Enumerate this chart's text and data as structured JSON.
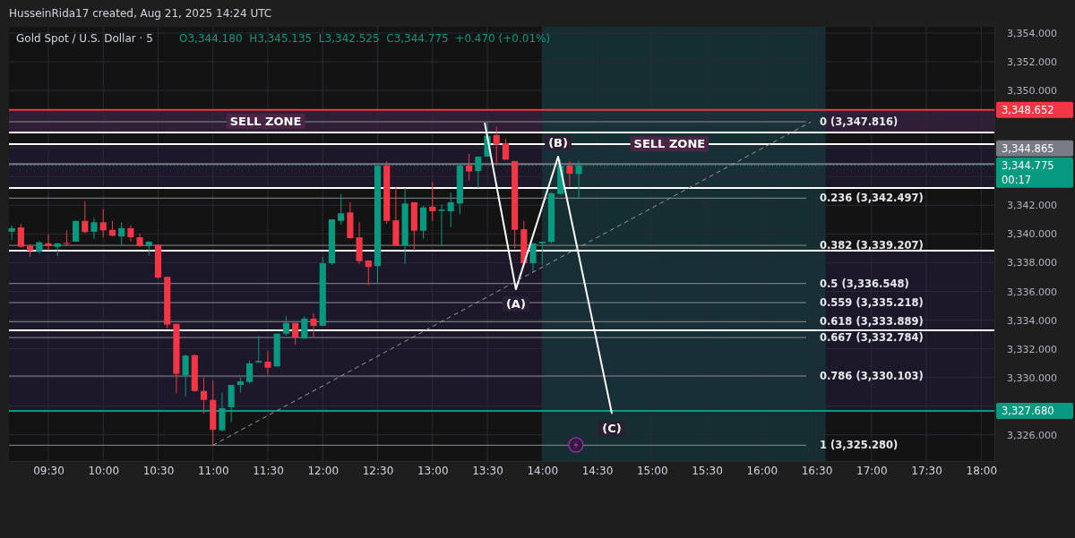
{
  "chart_data": {
    "type": "candlestick",
    "title": "Gold Spot / U.S. Dollar · 5",
    "subtitle": "O3,344.180  H3,345.135  L3,342.525  C3,344.775  +0.470 (+0.01%)",
    "x": [
      9.1667,
      9.25,
      9.3333,
      9.4167,
      9.5,
      9.5833,
      9.6667,
      9.75,
      9.8333,
      9.9167,
      10,
      10.0833,
      10.1667,
      10.25,
      10.3333,
      10.4167,
      10.5,
      10.5833,
      10.6667,
      10.75,
      10.8333,
      10.9167,
      11,
      11.0833,
      11.1667,
      11.25,
      11.3333,
      11.4167,
      11.5,
      11.5833,
      11.6667,
      11.75,
      11.8333,
      11.9167,
      12,
      12.0833,
      12.1667,
      12.25,
      12.3333,
      12.4167,
      12.5,
      12.5833,
      12.6667,
      12.75,
      12.8333,
      12.9167,
      13,
      13.0833,
      13.1667,
      13.25,
      13.3333,
      13.4167,
      13.5,
      13.5833,
      13.6667,
      13.75,
      13.8333,
      13.9167,
      14,
      14.0833,
      14.1667,
      14.25,
      14.3333
    ],
    "ohlc": [
      [
        3340.15,
        3340.61,
        3339.57,
        3340.4
      ],
      [
        3340.46,
        3340.71,
        3339.04,
        3339.11
      ],
      [
        3339.15,
        3339.29,
        3338.42,
        3338.84
      ],
      [
        3338.79,
        3339.5,
        3338.63,
        3339.42
      ],
      [
        3339.35,
        3339.98,
        3338.84,
        3339.15
      ],
      [
        3339.1,
        3339.35,
        3338.46,
        3339.35
      ],
      [
        3339.38,
        3340.25,
        3339.15,
        3339.33
      ],
      [
        3339.46,
        3340.91,
        3339.46,
        3340.91
      ],
      [
        3340.91,
        3342.27,
        3340.04,
        3340.13
      ],
      [
        3340.15,
        3341.13,
        3339.63,
        3340.81
      ],
      [
        3340.81,
        3341.75,
        3339.77,
        3340.25
      ],
      [
        3340.29,
        3340.91,
        3339.84,
        3339.88
      ],
      [
        3339.83,
        3340.81,
        3339.21,
        3340.4
      ],
      [
        3340.4,
        3340.6,
        3339.5,
        3339.77
      ],
      [
        3339.77,
        3340.04,
        3339.11,
        3339.15
      ],
      [
        3339.15,
        3339.5,
        3338.53,
        3339.46
      ],
      [
        3339.25,
        3339.25,
        3336.86,
        3336.96
      ],
      [
        3337.01,
        3337.01,
        3333.43,
        3333.68
      ],
      [
        3333.74,
        3333.74,
        3328.9,
        3330.25
      ],
      [
        3330.15,
        3331.6,
        3328.69,
        3331.52
      ],
      [
        3331.56,
        3331.6,
        3329.0,
        3329.06
      ],
      [
        3329.06,
        3330.0,
        3327.5,
        3328.44
      ],
      [
        3328.44,
        3329.8,
        3325.28,
        3326.36
      ],
      [
        3326.32,
        3328.96,
        3326.25,
        3327.86
      ],
      [
        3327.93,
        3329.48,
        3326.88,
        3329.48
      ],
      [
        3329.48,
        3330.0,
        3328.96,
        3329.73
      ],
      [
        3329.69,
        3331.18,
        3329.59,
        3330.98
      ],
      [
        3331.05,
        3332.91,
        3331.05,
        3331.15
      ],
      [
        3331.1,
        3331.87,
        3330.21,
        3330.68
      ],
      [
        3330.77,
        3333.05,
        3330.77,
        3333.05
      ],
      [
        3333.05,
        3334.26,
        3332.91,
        3333.8
      ],
      [
        3333.8,
        3333.8,
        3332.29,
        3332.8
      ],
      [
        3332.71,
        3334.26,
        3332.71,
        3334.1
      ],
      [
        3334.1,
        3334.47,
        3332.8,
        3333.6
      ],
      [
        3333.6,
        3338.42,
        3333.6,
        3337.96
      ],
      [
        3337.96,
        3341.02,
        3337.84,
        3341.02
      ],
      [
        3340.91,
        3342.79,
        3340.67,
        3341.44
      ],
      [
        3341.5,
        3342.21,
        3339.67,
        3339.71
      ],
      [
        3339.77,
        3340.81,
        3337.9,
        3338.11
      ],
      [
        3338.15,
        3338.15,
        3336.45,
        3337.7
      ],
      [
        3337.76,
        3344.76,
        3336.55,
        3344.76
      ],
      [
        3344.76,
        3345.08,
        3340.71,
        3340.91
      ],
      [
        3340.95,
        3343.31,
        3339.15,
        3339.21
      ],
      [
        3339.21,
        3343.2,
        3337.9,
        3342.12
      ],
      [
        3342.21,
        3342.21,
        3338.84,
        3340.23
      ],
      [
        3340.23,
        3341.96,
        3339.67,
        3341.85
      ],
      [
        3341.91,
        3343.62,
        3340.91,
        3341.58
      ],
      [
        3341.6,
        3342.06,
        3339.15,
        3341.7
      ],
      [
        3341.58,
        3342.89,
        3340.46,
        3342.21
      ],
      [
        3342.12,
        3344.91,
        3341.38,
        3344.76
      ],
      [
        3344.76,
        3345.59,
        3343.72,
        3344.35
      ],
      [
        3344.39,
        3345.39,
        3343.2,
        3345.39
      ],
      [
        3345.39,
        3347.816,
        3345.39,
        3346.84
      ],
      [
        3346.9,
        3347.46,
        3344.87,
        3346.22
      ],
      [
        3346.32,
        3346.64,
        3345.18,
        3345.18
      ],
      [
        3345.08,
        3345.08,
        3339.0,
        3340.29
      ],
      [
        3340.33,
        3340.91,
        3337.96,
        3337.96
      ],
      [
        3337.96,
        3339.35,
        3337.34,
        3339.35
      ],
      [
        3339.35,
        3339.46,
        3337.86,
        3339.46
      ],
      [
        3339.46,
        3342.89,
        3339.35,
        3342.83
      ],
      [
        3342.79,
        3345.18,
        3342.75,
        3344.76
      ],
      [
        3344.76,
        3345.08,
        3343.31,
        3344.2
      ],
      [
        3344.18,
        3345.135,
        3342.525,
        3344.775
      ]
    ],
    "series": [
      {
        "type": "line",
        "x": [
          13.476,
          13.76,
          14.145,
          14.635
        ],
        "values": [
          3347.75,
          3336.15,
          3345.39,
          3327.48
        ],
        "color": "#ffffff"
      },
      {
        "type": "line",
        "x": [
          11.0,
          16.447
        ],
        "values": [
          3325.28,
          3347.8
        ],
        "color": "#9598a1",
        "line_style": "dashed"
      }
    ],
    "xlim": [
      9.141,
      18.12
    ],
    "ylim": [
      3324.18,
      3354.43
    ],
    "xticks": [
      {
        "value": 9.5,
        "label": "09:30"
      },
      {
        "value": 10,
        "label": "10:00"
      },
      {
        "value": 10.5,
        "label": "10:30"
      },
      {
        "value": 11,
        "label": "11:00"
      },
      {
        "value": 11.5,
        "label": "11:30"
      },
      {
        "value": 12,
        "label": "12:00"
      },
      {
        "value": 12.5,
        "label": "12:30"
      },
      {
        "value": 13,
        "label": "13:00"
      },
      {
        "value": 13.5,
        "label": "13:30"
      },
      {
        "value": 14,
        "label": "14:00"
      },
      {
        "value": 14.5,
        "label": "14:30"
      },
      {
        "value": 15,
        "label": "15:00"
      },
      {
        "value": 15.5,
        "label": "15:30"
      },
      {
        "value": 16,
        "label": "16:00"
      },
      {
        "value": 16.5,
        "label": "16:30"
      },
      {
        "value": 17,
        "label": "17:00"
      },
      {
        "value": 17.5,
        "label": "17:30"
      },
      {
        "value": 18,
        "label": "18:00"
      }
    ],
    "yticks": [
      {
        "value": 3326,
        "label": "3,326.000"
      },
      {
        "value": 3328,
        "label": null
      },
      {
        "value": 3330,
        "label": "3,330.000"
      },
      {
        "value": 3332,
        "label": "3,332.000"
      },
      {
        "value": 3334,
        "label": "3,334.000"
      },
      {
        "value": 3336,
        "label": "3,336.000"
      },
      {
        "value": 3338,
        "label": "3,338.000"
      },
      {
        "value": 3340,
        "label": "3,340.000"
      },
      {
        "value": 3342,
        "label": "3,342.000"
      },
      {
        "value": 3344,
        "label": null
      },
      {
        "value": 3346,
        "label": null
      },
      {
        "value": 3348,
        "label": null
      },
      {
        "value": 3350,
        "label": "3,350.000"
      },
      {
        "value": 3352,
        "label": "3,352.000"
      },
      {
        "value": 3354,
        "label": "3,354.000"
      }
    ],
    "grid": true,
    "bands": [
      {
        "axis": "y",
        "from": 3327.55,
        "to": 3338.84,
        "color": "#1e1a2e"
      },
      {
        "axis": "y",
        "from": 3343.2,
        "to": 3346.26,
        "color": "#1e1a2e"
      },
      {
        "axis": "y",
        "from": 3347.07,
        "to": 3348.652,
        "color": "#35213d"
      },
      {
        "axis": "x",
        "from": 14.0,
        "to": 16.583,
        "color": "#17363a"
      }
    ],
    "ref_lines": [
      {
        "axis": "y",
        "value": 3347.07
      },
      {
        "axis": "y",
        "value": 3346.26
      },
      {
        "axis": "y",
        "value": 3343.2
      },
      {
        "axis": "y",
        "value": 3338.84
      },
      {
        "axis": "y",
        "value": 3333.29
      },
      {
        "axis": "y",
        "value": 3348.652,
        "label": "3,348.652",
        "color": "#f23645"
      },
      {
        "axis": "y",
        "value": 3344.865,
        "label": "3,344.865",
        "color": "#787b86"
      },
      {
        "axis": "y",
        "value": 3344.775,
        "label": "3,344.775\n00:17",
        "color": "#089981",
        "line_style": "dotted"
      },
      {
        "axis": "y",
        "value": 3327.68,
        "label": "3,327.680",
        "color": "#089981"
      },
      {
        "axis": "y",
        "value": 3347.816,
        "label": "0 (3,347.816)"
      },
      {
        "axis": "y",
        "value": 3342.497,
        "label": "0.236 (3,342.497)"
      },
      {
        "axis": "y",
        "value": 3339.207,
        "label": "0.382 (3,339.207)"
      },
      {
        "axis": "y",
        "value": 3336.548,
        "label": "0.5 (3,336.548)"
      },
      {
        "axis": "y",
        "value": 3335.218,
        "label": "0.559 (3,335.218)"
      },
      {
        "axis": "y",
        "value": 3333.889,
        "label": "0.618 (3,333.889)"
      },
      {
        "axis": "y",
        "value": 3332.784,
        "label": "0.667 (3,332.784)"
      },
      {
        "axis": "y",
        "value": 3330.103,
        "label": "0.786 (3,330.103)"
      },
      {
        "axis": "y",
        "value": 3325.28,
        "label": "1 (3,325.280)"
      }
    ],
    "annotations": [
      "HusseinRida17 created, Aug 21, 2025 14:24 UTC",
      {
        "text": "SELL ZONE",
        "x": 11.48,
        "y": 3347.88
      },
      {
        "text": "SELL ZONE",
        "x": 15.16,
        "y": 3346.3
      },
      {
        "text": "(A)",
        "x": 13.76,
        "y": 3336.15
      },
      {
        "text": "(B)",
        "x": 14.145,
        "y": 3345.39
      },
      {
        "text": "(C)",
        "x": 14.635,
        "y": 3327.48
      }
    ]
  }
}
